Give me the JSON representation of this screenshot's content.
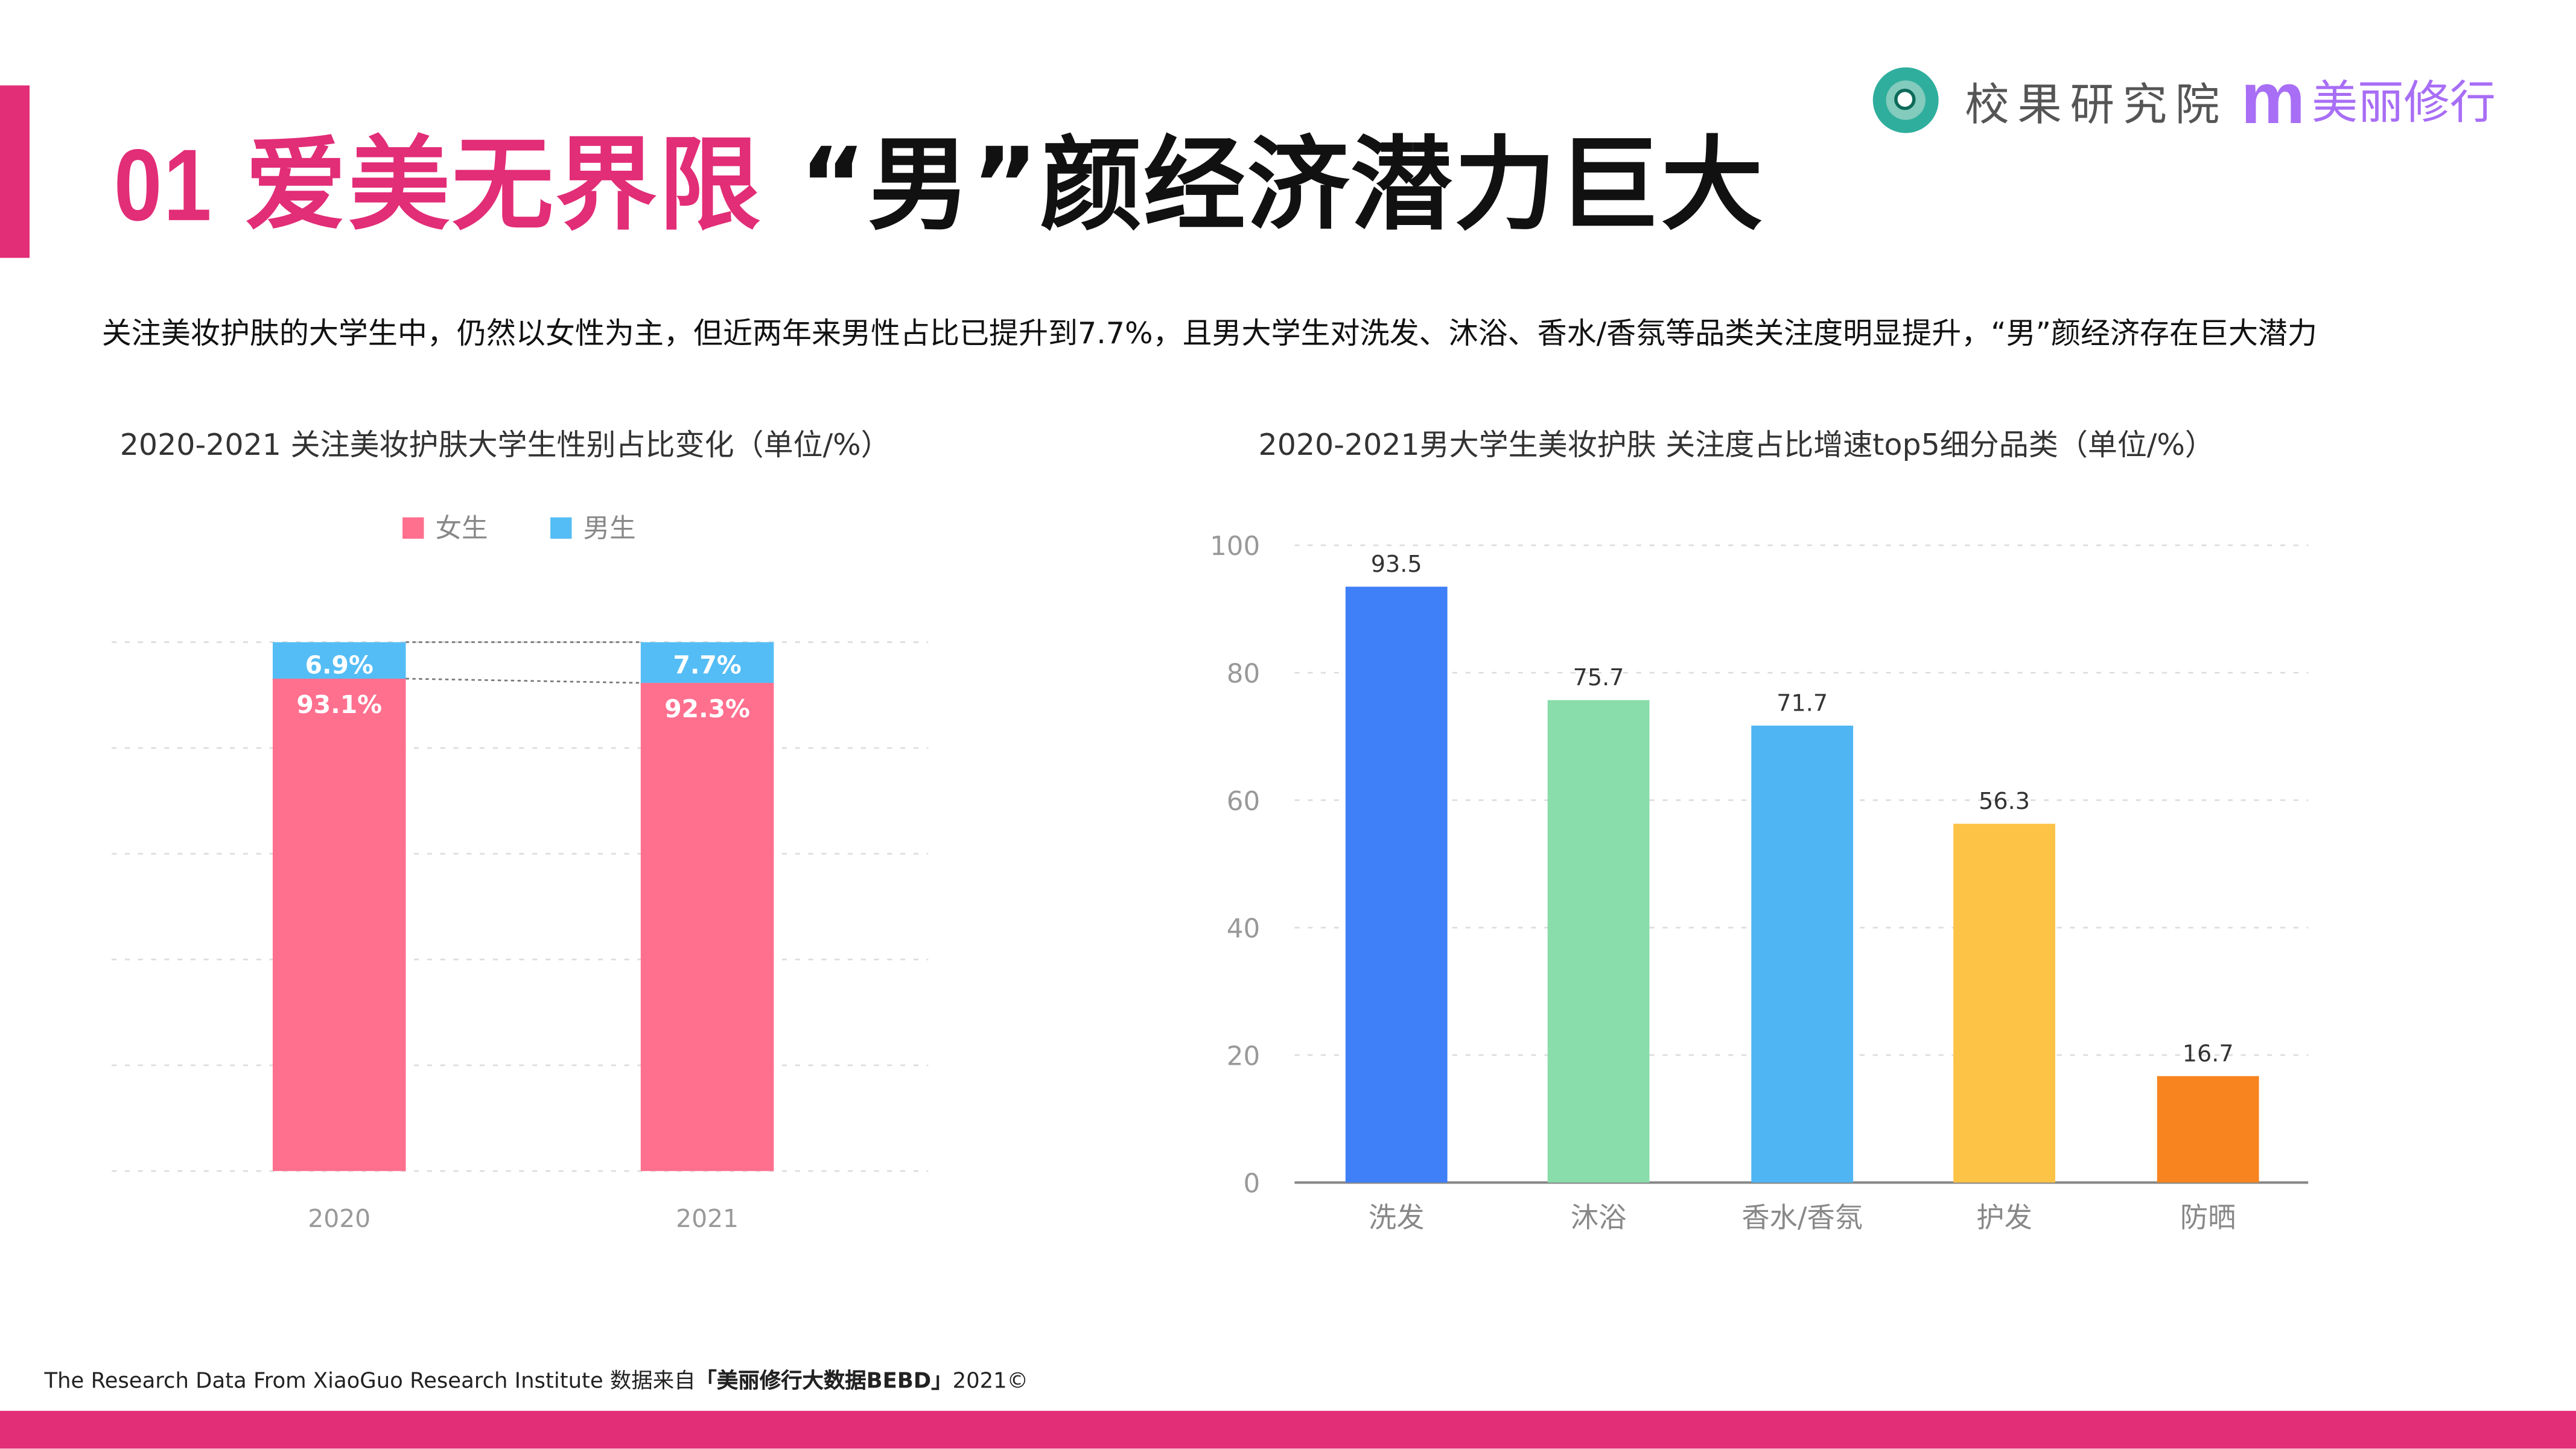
{
  "header": {
    "number": "01",
    "title_pink": "爱美无界限",
    "title_black": "“男”颜经济潜力巨大"
  },
  "logo": {
    "org": "校果研究院",
    "mark": "m",
    "brand": "美丽修行"
  },
  "description": "关注美妆护肤的大学生中，仍然以女性为主，但近两年来男性占比已提升到7.7%，且男大学生对洗发、沐浴、香水/香氛等品类关注度明显提升，“男”颜经济存在巨大潜力",
  "footer": {
    "prefix": "The Research Data From XiaoGuo Research Institute 数据来自",
    "source": "「美丽修行大数据BEBD」",
    "suffix": "2021©"
  },
  "colors": {
    "accent": "#e22d77",
    "female": "#ff6f8e",
    "male": "#55bdf5"
  },
  "chart_data": [
    {
      "type": "bar",
      "stacked": true,
      "title": "2020-2021 关注美妆护肤大学生性别占比变化（单位/%）",
      "categories": [
        "2020",
        "2021"
      ],
      "series": [
        {
          "name": "女生",
          "values": [
            93.1,
            92.3
          ],
          "labels": [
            "93.1%",
            "92.3%"
          ],
          "color": "#ff6f8e"
        },
        {
          "name": "男生",
          "values": [
            6.9,
            7.7
          ],
          "labels": [
            "6.9%",
            "7.7%"
          ],
          "color": "#55bdf5"
        }
      ],
      "ylim": [
        0,
        100
      ],
      "grid": true,
      "legend": "top-center"
    },
    {
      "type": "bar",
      "title": "2020-2021男大学生美妆护肤 关注度占比增速top5细分品类（单位/%）",
      "categories": [
        "洗发",
        "沐浴",
        "香水/香氛",
        "护发",
        "防晒"
      ],
      "values": [
        93.5,
        75.7,
        71.7,
        56.3,
        16.7
      ],
      "colors": [
        "#3f7ff7",
        "#88ddaa",
        "#4fb6f3",
        "#fdc347",
        "#f7841f"
      ],
      "yticks": [
        "0",
        "20",
        "40",
        "60",
        "80",
        "100"
      ],
      "ylim": [
        0,
        100
      ],
      "grid": true
    }
  ]
}
